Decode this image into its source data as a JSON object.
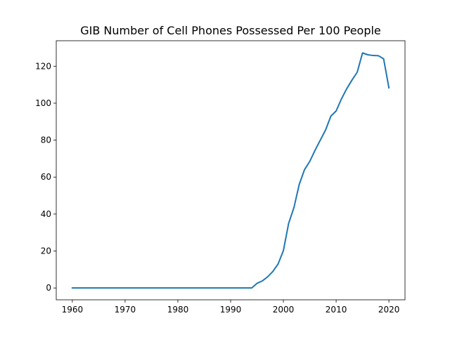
{
  "chart_data": {
    "type": "line",
    "title": "GIB Number of Cell Phones Possessed Per 100 People",
    "xlabel": "",
    "ylabel": "",
    "xlim": [
      1956.95,
      2023.05
    ],
    "ylim": [
      -6.4,
      133.8
    ],
    "x_ticks": [
      1960,
      1970,
      1980,
      1990,
      2000,
      2010,
      2020
    ],
    "y_ticks": [
      0,
      20,
      40,
      60,
      80,
      100,
      120
    ],
    "grid": false,
    "series": [
      {
        "color": "#1f77b4",
        "x": [
          1960,
          1961,
          1962,
          1963,
          1964,
          1965,
          1966,
          1967,
          1968,
          1969,
          1970,
          1971,
          1972,
          1973,
          1974,
          1975,
          1976,
          1977,
          1978,
          1979,
          1980,
          1981,
          1982,
          1983,
          1984,
          1985,
          1986,
          1987,
          1988,
          1989,
          1990,
          1991,
          1992,
          1993,
          1994,
          1995,
          1996,
          1997,
          1998,
          1999,
          2000,
          2001,
          2002,
          2003,
          2004,
          2005,
          2006,
          2007,
          2008,
          2009,
          2010,
          2011,
          2012,
          2013,
          2014,
          2015,
          2016,
          2017,
          2018,
          2019,
          2020
        ],
        "y": [
          0,
          0,
          0,
          0,
          0,
          0,
          0,
          0,
          0,
          0,
          0,
          0,
          0,
          0,
          0,
          0,
          0,
          0,
          0,
          0,
          0,
          0,
          0,
          0,
          0,
          0,
          0,
          0,
          0,
          0,
          0,
          0,
          0,
          0,
          0,
          2.5,
          3.8,
          6.0,
          8.9,
          13.0,
          20.2,
          35.0,
          43.5,
          56.0,
          64.0,
          68.5,
          74.5,
          80.0,
          85.5,
          93.0,
          95.8,
          102.3,
          107.8,
          112.5,
          116.8,
          127.2,
          126.2,
          125.8,
          125.7,
          124.0,
          108.3
        ]
      }
    ]
  }
}
